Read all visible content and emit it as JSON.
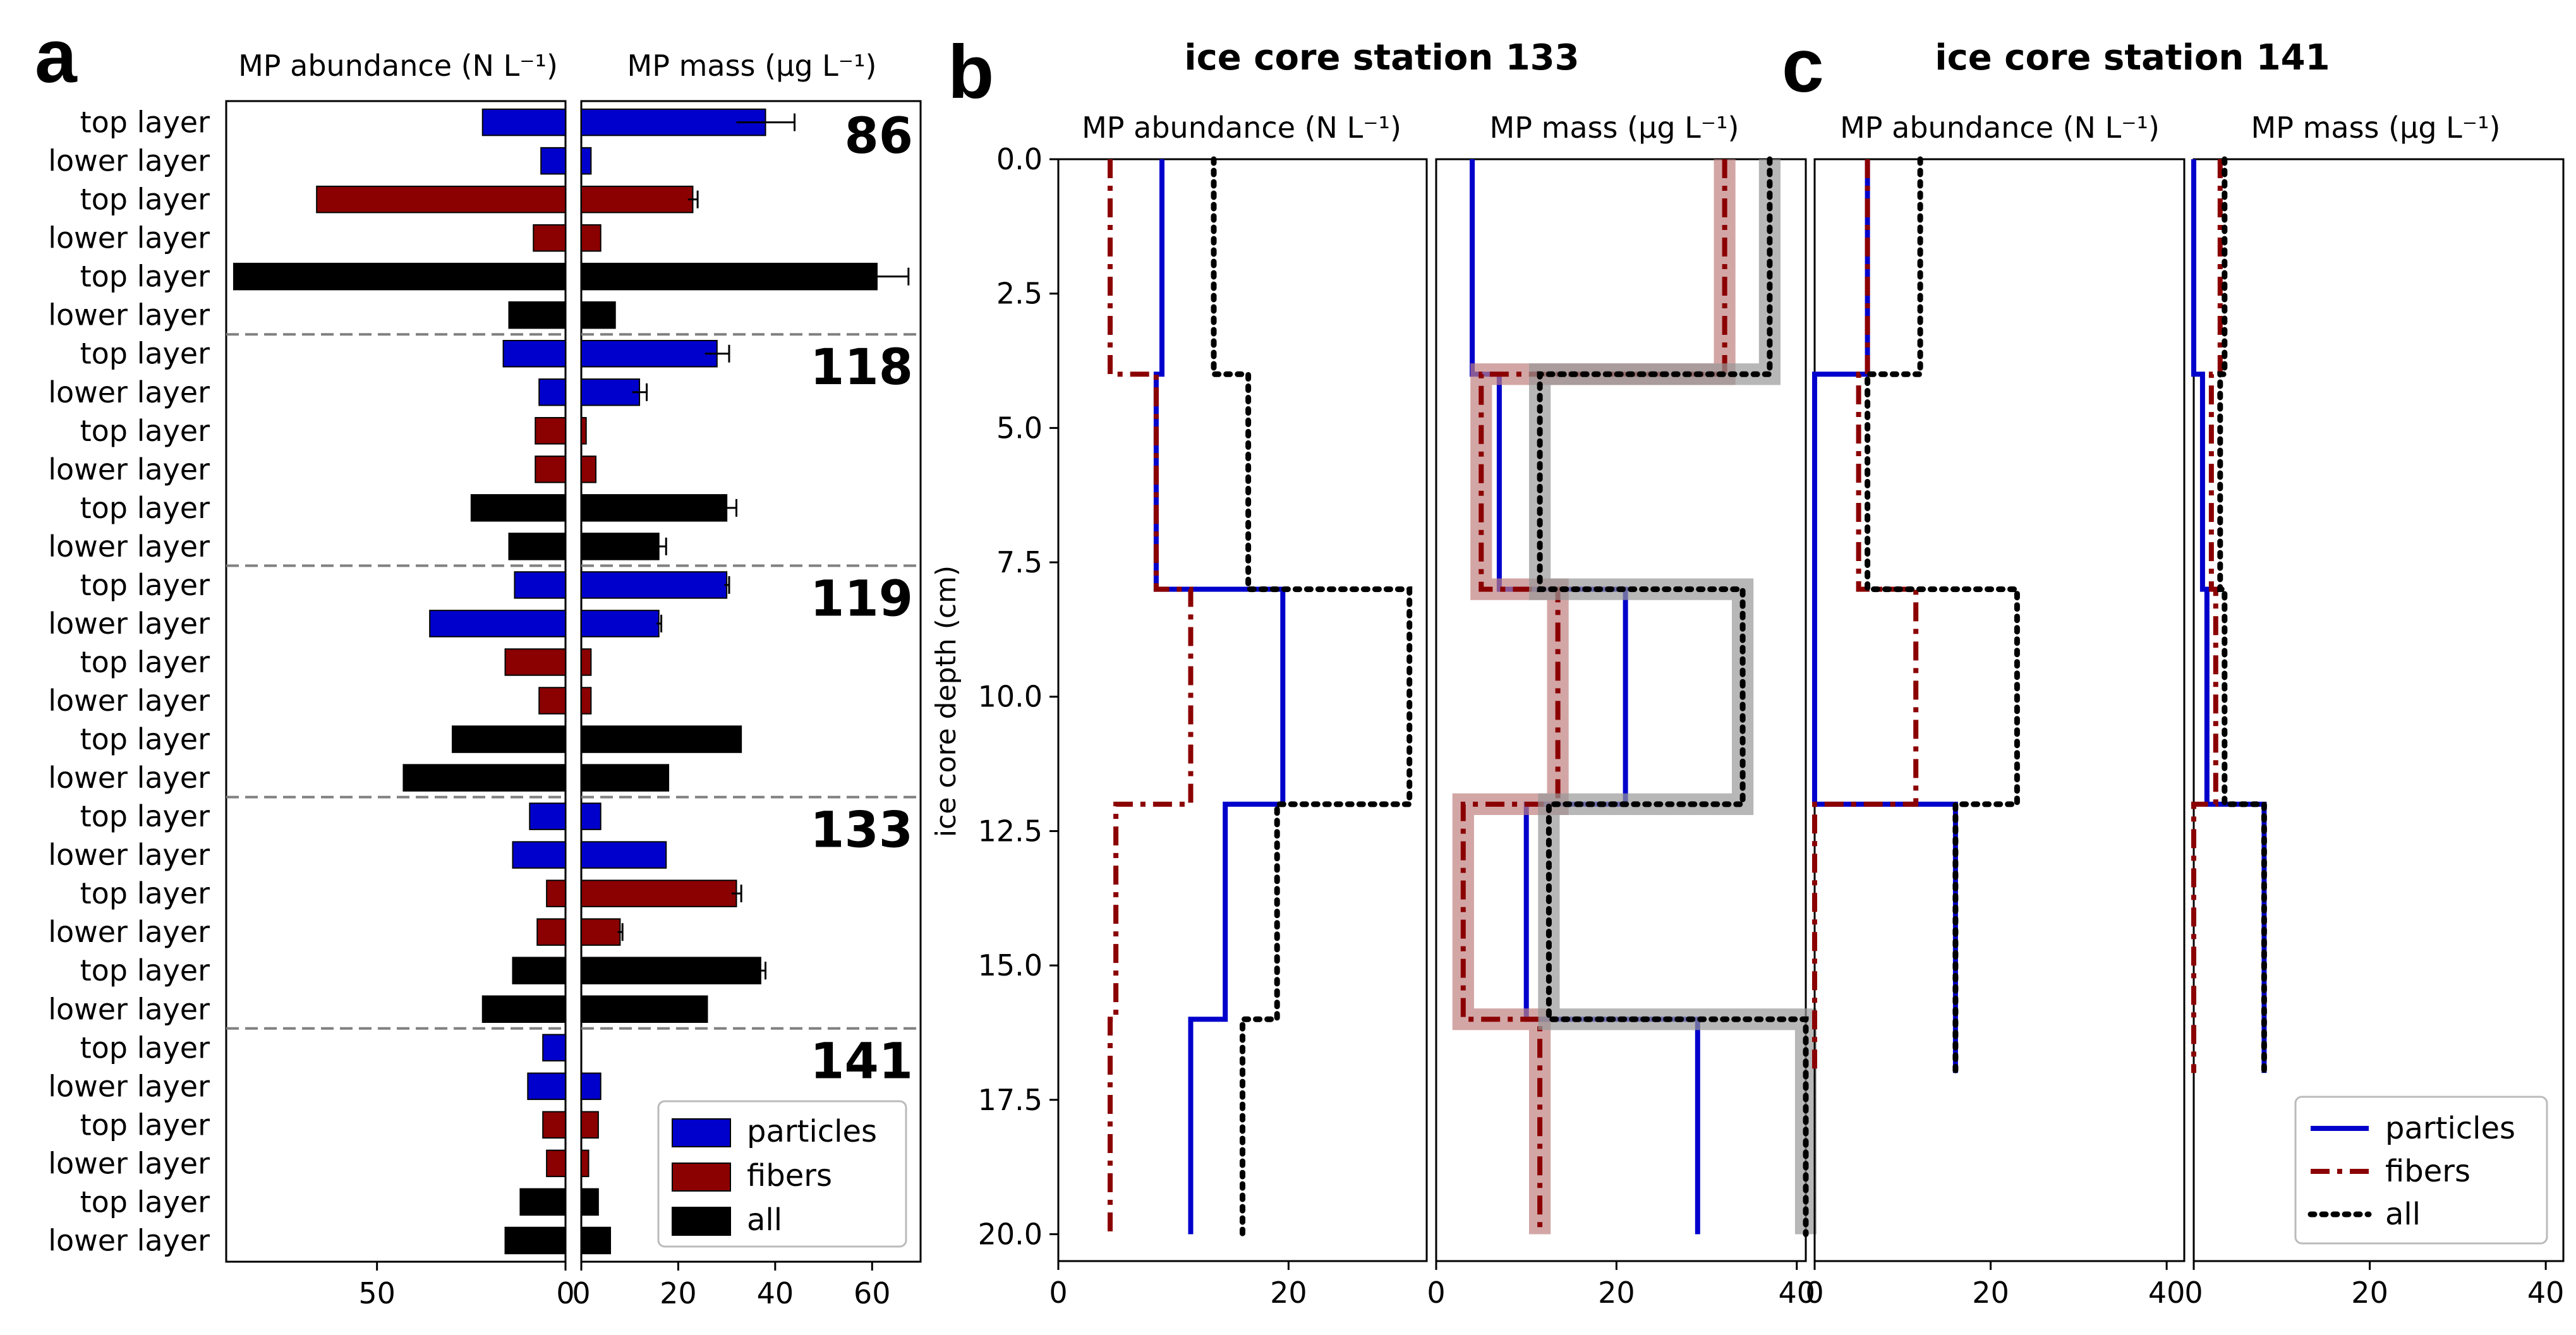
{
  "panel_letters": {
    "a": "a",
    "b": "b",
    "c": "c"
  },
  "panel_titles": {
    "b": "ice core station 133",
    "c": "ice core station 141"
  },
  "colors": {
    "particles": "#0000cc",
    "fibers": "#8b0000",
    "all": "#000000",
    "divider": "#808080"
  },
  "chart_data": [
    {
      "type": "bar",
      "panel": "a",
      "orientation": "horizontal",
      "title_left": "MP abundance (N L⁻¹)",
      "title_right": "MP mass (µg L⁻¹)",
      "left_xlim": [
        0,
        90
      ],
      "left_ticks": [
        50,
        0
      ],
      "left_tick_labels": [
        "50",
        "0"
      ],
      "right_xlim": [
        0,
        70
      ],
      "right_ticks": [
        0,
        20,
        40,
        60
      ],
      "right_tick_labels": [
        "0",
        "20",
        "40",
        "60"
      ],
      "groups": [
        {
          "station": "86",
          "rows": [
            {
              "label": "top layer",
              "type": "particles",
              "abundance": 22,
              "mass": 38,
              "mass_err": 6
            },
            {
              "label": "lower layer",
              "type": "particles",
              "abundance": 6.5,
              "mass": 2,
              "mass_err": 0
            },
            {
              "label": "top layer",
              "type": "fibers",
              "abundance": 66,
              "mass": 23,
              "mass_err": 1
            },
            {
              "label": "lower layer",
              "type": "fibers",
              "abundance": 8.5,
              "mass": 4,
              "mass_err": 0
            },
            {
              "label": "top layer",
              "type": "all",
              "abundance": 88,
              "mass": 61,
              "mass_err": 6.5
            },
            {
              "label": "lower layer",
              "type": "all",
              "abundance": 15,
              "mass": 7,
              "mass_err": 0
            }
          ]
        },
        {
          "station": "118",
          "rows": [
            {
              "label": "top layer",
              "type": "particles",
              "abundance": 16.5,
              "mass": 28,
              "mass_err": 2.5
            },
            {
              "label": "lower layer",
              "type": "particles",
              "abundance": 7,
              "mass": 12,
              "mass_err": 1.5
            },
            {
              "label": "top layer",
              "type": "fibers",
              "abundance": 8,
              "mass": 1,
              "mass_err": 0
            },
            {
              "label": "lower layer",
              "type": "fibers",
              "abundance": 8,
              "mass": 3,
              "mass_err": 0
            },
            {
              "label": "top layer",
              "type": "all",
              "abundance": 25,
              "mass": 30,
              "mass_err": 2
            },
            {
              "label": "lower layer",
              "type": "all",
              "abundance": 15,
              "mass": 16,
              "mass_err": 1.5
            }
          ]
        },
        {
          "station": "119",
          "rows": [
            {
              "label": "top layer",
              "type": "particles",
              "abundance": 13.5,
              "mass": 30,
              "mass_err": 0.5
            },
            {
              "label": "lower layer",
              "type": "particles",
              "abundance": 36,
              "mass": 16,
              "mass_err": 0.5
            },
            {
              "label": "top layer",
              "type": "fibers",
              "abundance": 16,
              "mass": 2,
              "mass_err": 0
            },
            {
              "label": "lower layer",
              "type": "fibers",
              "abundance": 7,
              "mass": 2,
              "mass_err": 0
            },
            {
              "label": "top layer",
              "type": "all",
              "abundance": 30,
              "mass": 33,
              "mass_err": 0
            },
            {
              "label": "lower layer",
              "type": "all",
              "abundance": 43,
              "mass": 18,
              "mass_err": 0
            }
          ]
        },
        {
          "station": "133",
          "rows": [
            {
              "label": "top layer",
              "type": "particles",
              "abundance": 9.5,
              "mass": 4,
              "mass_err": 0
            },
            {
              "label": "lower layer",
              "type": "particles",
              "abundance": 14,
              "mass": 17.5,
              "mass_err": 0
            },
            {
              "label": "top layer",
              "type": "fibers",
              "abundance": 5,
              "mass": 32,
              "mass_err": 1
            },
            {
              "label": "lower layer",
              "type": "fibers",
              "abundance": 7.5,
              "mass": 8,
              "mass_err": 0.5
            },
            {
              "label": "top layer",
              "type": "all",
              "abundance": 14,
              "mass": 37,
              "mass_err": 1
            },
            {
              "label": "lower layer",
              "type": "all",
              "abundance": 22,
              "mass": 26,
              "mass_err": 0
            }
          ]
        },
        {
          "station": "141",
          "rows": [
            {
              "label": "top layer",
              "type": "particles",
              "abundance": 6,
              "mass": 0,
              "mass_err": 0
            },
            {
              "label": "lower layer",
              "type": "particles",
              "abundance": 10,
              "mass": 4,
              "mass_err": 0
            },
            {
              "label": "top layer",
              "type": "fibers",
              "abundance": 6,
              "mass": 3.5,
              "mass_err": 0
            },
            {
              "label": "lower layer",
              "type": "fibers",
              "abundance": 5,
              "mass": 1.5,
              "mass_err": 0
            },
            {
              "label": "top layer",
              "type": "all",
              "abundance": 12,
              "mass": 3.5,
              "mass_err": 0
            },
            {
              "label": "lower layer",
              "type": "all",
              "abundance": 16,
              "mass": 6,
              "mass_err": 0
            }
          ]
        }
      ],
      "legend": {
        "entries": [
          "particles",
          "fibers",
          "all"
        ],
        "placement": "lower-right"
      }
    },
    {
      "type": "line",
      "panel": "b",
      "title": "ice core station 133",
      "ylabel": "ice core depth (cm)",
      "ylim": [
        20.5,
        0
      ],
      "yticks": [
        0,
        2.5,
        5,
        7.5,
        10,
        12.5,
        15,
        17.5,
        20
      ],
      "ytick_labels": [
        "0.0",
        "2.5",
        "5.0",
        "7.5",
        "10.0",
        "12.5",
        "15.0",
        "17.5",
        "20.0"
      ],
      "subplots": [
        {
          "xlabel": "MP abundance (N L⁻¹)",
          "xlim": [
            0,
            32
          ],
          "xticks": [
            0,
            20
          ],
          "xtick_labels": [
            "0",
            "20"
          ],
          "series": [
            {
              "name": "particles",
              "depths": [
                0,
                4,
                8,
                12,
                16,
                20
              ],
              "values": [
                9,
                8.5,
                19.5,
                14.5,
                11.5
              ]
            },
            {
              "name": "fibers",
              "depths": [
                0,
                4,
                8,
                12,
                16,
                20
              ],
              "values": [
                4.5,
                8.5,
                11.5,
                5,
                4.5
              ]
            },
            {
              "name": "all",
              "depths": [
                0,
                4,
                8,
                12,
                16,
                20
              ],
              "values": [
                13.5,
                16.5,
                30.5,
                19,
                16
              ]
            }
          ]
        },
        {
          "xlabel": "MP mass (µg L⁻¹)",
          "xlim": [
            0,
            41
          ],
          "xticks": [
            0,
            20,
            40
          ],
          "xtick_labels": [
            "0",
            "20",
            "40"
          ],
          "series": [
            {
              "name": "particles",
              "depths": [
                0,
                4,
                8,
                12,
                16,
                20
              ],
              "values": [
                4,
                7,
                21,
                10,
                29
              ]
            },
            {
              "name": "fibers",
              "depths": [
                0,
                4,
                8,
                12,
                16,
                20
              ],
              "values": [
                32,
                5,
                13.5,
                3,
                11.5
              ],
              "band": 1.2
            },
            {
              "name": "all",
              "depths": [
                0,
                4,
                8,
                12,
                16,
                20
              ],
              "values": [
                37,
                11.5,
                34,
                12.5,
                41
              ],
              "band": 1.2
            }
          ]
        }
      ]
    },
    {
      "type": "line",
      "panel": "c",
      "title": "ice core station 141",
      "subplots": [
        {
          "xlabel": "MP abundance (N L⁻¹)",
          "xlim": [
            0,
            42
          ],
          "xticks": [
            0,
            20,
            40
          ],
          "xtick_labels": [
            "0",
            "20",
            "40"
          ],
          "series": [
            {
              "name": "particles",
              "depths": [
                0,
                4,
                8,
                12,
                17
              ],
              "values": [
                6,
                0,
                0,
                16
              ]
            },
            {
              "name": "fibers",
              "depths": [
                0,
                4,
                8,
                12,
                17
              ],
              "values": [
                6,
                5,
                11.5,
                0
              ]
            },
            {
              "name": "all",
              "depths": [
                0,
                4,
                8,
                12,
                17
              ],
              "values": [
                12,
                6,
                23,
                16
              ]
            }
          ]
        },
        {
          "xlabel": "MP mass (µg L⁻¹)",
          "xlim": [
            0,
            42
          ],
          "xticks": [
            0,
            20,
            40
          ],
          "xtick_labels": [
            "0",
            "20",
            "40"
          ],
          "series": [
            {
              "name": "particles",
              "depths": [
                0,
                4,
                8,
                12,
                17
              ],
              "values": [
                0,
                1,
                1.5,
                8
              ]
            },
            {
              "name": "fibers",
              "depths": [
                0,
                4,
                8,
                12,
                17
              ],
              "values": [
                3,
                2,
                2.5,
                0
              ]
            },
            {
              "name": "all",
              "depths": [
                0,
                4,
                8,
                12,
                17
              ],
              "values": [
                3.5,
                3,
                3.5,
                8
              ]
            }
          ]
        }
      ],
      "legend": {
        "entries": [
          "particles",
          "fibers",
          "all"
        ],
        "placement": "lower-right"
      }
    }
  ]
}
